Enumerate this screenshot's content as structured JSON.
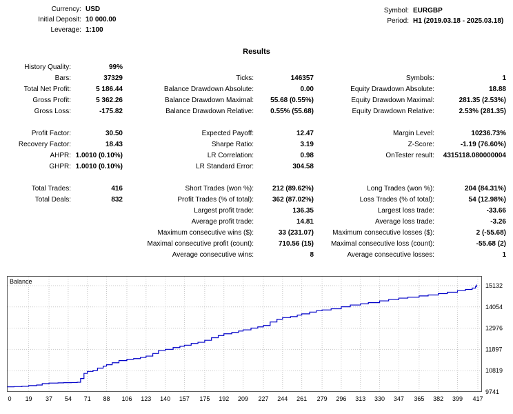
{
  "header": {
    "left": [
      {
        "label": "Currency:",
        "value": "USD"
      },
      {
        "label": "Initial Deposit:",
        "value": "10 000.00"
      },
      {
        "label": "Leverage:",
        "value": "1:100"
      }
    ],
    "right": [
      {
        "label": "Symbol:",
        "value": "EURGBP"
      },
      {
        "label": "Period:",
        "value": "H1 (2019.03.18 - 2025.03.18)"
      }
    ]
  },
  "results_title": "Results",
  "stats_rows": [
    [
      "History Quality:",
      "99%",
      "",
      "",
      "",
      ""
    ],
    [
      "Bars:",
      "37329",
      "Ticks:",
      "146357",
      "Symbols:",
      "1"
    ],
    [
      "Total Net Profit:",
      "5 186.44",
      "Balance Drawdown Absolute:",
      "0.00",
      "Equity Drawdown Absolute:",
      "18.88"
    ],
    [
      "Gross Profit:",
      "5 362.26",
      "Balance Drawdown Maximal:",
      "55.68 (0.55%)",
      "Equity Drawdown Maximal:",
      "281.35 (2.53%)"
    ],
    [
      "Gross Loss:",
      "-175.82",
      "Balance Drawdown Relative:",
      "0.55% (55.68)",
      "Equity Drawdown Relative:",
      "2.53% (281.35)"
    ],
    [
      "",
      "",
      "",
      "",
      "",
      ""
    ],
    [
      "Profit Factor:",
      "30.50",
      "Expected Payoff:",
      "12.47",
      "Margin Level:",
      "10236.73%"
    ],
    [
      "Recovery Factor:",
      "18.43",
      "Sharpe Ratio:",
      "3.19",
      "Z-Score:",
      "-1.19 (76.60%)"
    ],
    [
      "AHPR:",
      "1.0010 (0.10%)",
      "LR Correlation:",
      "0.98",
      "OnTester result:",
      "4315118.080000004"
    ],
    [
      "GHPR:",
      "1.0010 (0.10%)",
      "LR Standard Error:",
      "304.58",
      "",
      ""
    ],
    [
      "",
      "",
      "",
      "",
      "",
      ""
    ],
    [
      "Total Trades:",
      "416",
      "Short Trades (won %):",
      "212 (89.62%)",
      "Long Trades (won %):",
      "204 (84.31%)"
    ],
    [
      "Total Deals:",
      "832",
      "Profit Trades (% of total):",
      "362 (87.02%)",
      "Loss Trades (% of total):",
      "54 (12.98%)"
    ],
    [
      "",
      "",
      "Largest profit trade:",
      "136.35",
      "Largest loss trade:",
      "-33.66"
    ],
    [
      "",
      "",
      "Average profit trade:",
      "14.81",
      "Average loss trade:",
      "-3.26"
    ],
    [
      "",
      "",
      "Maximum consecutive wins ($):",
      "33 (231.07)",
      "Maximum consecutive losses ($):",
      "2 (-55.68)"
    ],
    [
      "",
      "",
      "Maximal consecutive profit (count):",
      "710.56 (15)",
      "Maximal consecutive loss (count):",
      "-55.68 (2)"
    ],
    [
      "",
      "",
      "Average consecutive wins:",
      "8",
      "Average consecutive losses:",
      "1"
    ]
  ],
  "chart_data": {
    "type": "line",
    "title": "Balance",
    "xlabel": "",
    "ylabel": "",
    "line_color": "#0000C8",
    "grid": true,
    "legend_position": "top-left-inside",
    "x_max": 421,
    "ylim": [
      9741,
      15400
    ],
    "y_ticks": [
      9741,
      10819,
      11897,
      12976,
      14054,
      15132
    ],
    "x_ticks": [
      0,
      19,
      37,
      54,
      71,
      88,
      106,
      123,
      140,
      157,
      175,
      192,
      209,
      227,
      244,
      261,
      279,
      296,
      313,
      330,
      347,
      365,
      382,
      399,
      417
    ],
    "series": [
      {
        "name": "Balance",
        "points": [
          [
            0,
            10000
          ],
          [
            6,
            10010
          ],
          [
            13,
            10030
          ],
          [
            19,
            10060
          ],
          [
            26,
            10090
          ],
          [
            31,
            10160
          ],
          [
            37,
            10190
          ],
          [
            45,
            10200
          ],
          [
            50,
            10210
          ],
          [
            57,
            10215
          ],
          [
            62,
            10230
          ],
          [
            65,
            10420
          ],
          [
            68,
            10680
          ],
          [
            71,
            10780
          ],
          [
            76,
            10830
          ],
          [
            80,
            10950
          ],
          [
            85,
            11050
          ],
          [
            88,
            11120
          ],
          [
            93,
            11220
          ],
          [
            99,
            11330
          ],
          [
            106,
            11400
          ],
          [
            112,
            11430
          ],
          [
            118,
            11490
          ],
          [
            123,
            11560
          ],
          [
            129,
            11690
          ],
          [
            134,
            11840
          ],
          [
            140,
            11900
          ],
          [
            147,
            11990
          ],
          [
            153,
            12060
          ],
          [
            157,
            12110
          ],
          [
            163,
            12200
          ],
          [
            169,
            12260
          ],
          [
            175,
            12360
          ],
          [
            181,
            12490
          ],
          [
            187,
            12600
          ],
          [
            192,
            12690
          ],
          [
            199,
            12760
          ],
          [
            205,
            12830
          ],
          [
            209,
            12890
          ],
          [
            216,
            12980
          ],
          [
            222,
            13040
          ],
          [
            227,
            13110
          ],
          [
            233,
            13290
          ],
          [
            239,
            13430
          ],
          [
            244,
            13510
          ],
          [
            251,
            13560
          ],
          [
            257,
            13640
          ],
          [
            261,
            13700
          ],
          [
            268,
            13790
          ],
          [
            274,
            13860
          ],
          [
            279,
            13900
          ],
          [
            287,
            13960
          ],
          [
            296,
            14060
          ],
          [
            304,
            14150
          ],
          [
            313,
            14210
          ],
          [
            320,
            14270
          ],
          [
            330,
            14360
          ],
          [
            338,
            14430
          ],
          [
            347,
            14500
          ],
          [
            355,
            14550
          ],
          [
            365,
            14610
          ],
          [
            373,
            14660
          ],
          [
            382,
            14730
          ],
          [
            390,
            14800
          ],
          [
            399,
            14880
          ],
          [
            406,
            14940
          ],
          [
            412,
            15010
          ],
          [
            415,
            15090
          ],
          [
            416,
            15186.44
          ]
        ]
      }
    ]
  }
}
